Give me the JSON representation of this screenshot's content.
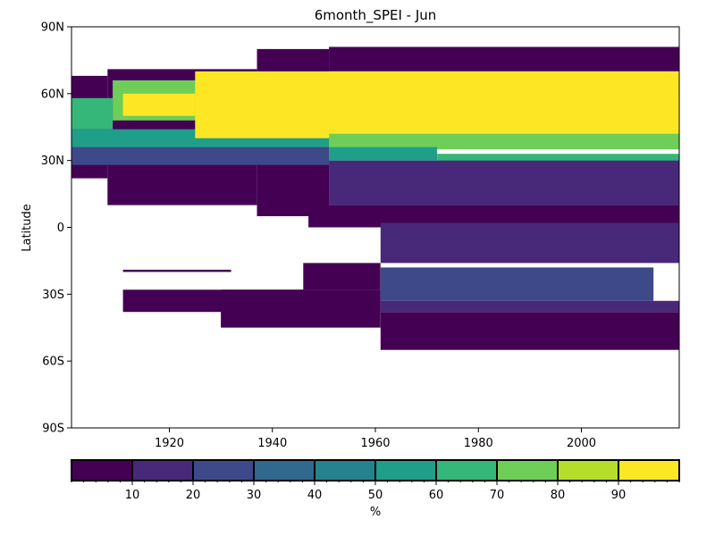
{
  "chart_data": {
    "type": "heatmap",
    "title": "6month_SPEI - Jun",
    "xlabel": "",
    "ylabel": "Latitude",
    "xlim": [
      1901,
      2019
    ],
    "ylim": [
      -90,
      90
    ],
    "xticks": [
      {
        "value": 1920,
        "label": "1920"
      },
      {
        "value": 1940,
        "label": "1940"
      },
      {
        "value": 1960,
        "label": "1960"
      },
      {
        "value": 1980,
        "label": "1980"
      },
      {
        "value": 2000,
        "label": "2000"
      }
    ],
    "yticks": [
      {
        "value": 90,
        "label": "90N"
      },
      {
        "value": 60,
        "label": "60N"
      },
      {
        "value": 30,
        "label": "30N"
      },
      {
        "value": 0,
        "label": "0"
      },
      {
        "value": -30,
        "label": "30S"
      },
      {
        "value": -60,
        "label": "60S"
      },
      {
        "value": -90,
        "label": "90S"
      }
    ],
    "colorbar": {
      "label": "%",
      "range": [
        0,
        100
      ],
      "boundaries": [
        0,
        10,
        20,
        30,
        40,
        50,
        60,
        70,
        80,
        90,
        100
      ],
      "tick_labels": [
        "10",
        "20",
        "30",
        "40",
        "50",
        "60",
        "70",
        "80",
        "90"
      ],
      "colors": [
        "#440154",
        "#482878",
        "#3e4989",
        "#31688e",
        "#26828e",
        "#1f9e89",
        "#35b779",
        "#6ece58",
        "#b5de2b",
        "#fde725"
      ]
    },
    "regions": [
      {
        "x": [
          1901,
          1908
        ],
        "lat": [
          22,
          68
        ],
        "value": 5
      },
      {
        "x": [
          1908,
          1937
        ],
        "lat": [
          10,
          71
        ],
        "value": 5
      },
      {
        "x": [
          1937,
          1951
        ],
        "lat": [
          5,
          80
        ],
        "value": 5
      },
      {
        "x": [
          1951,
          2019
        ],
        "lat": [
          70,
          81
        ],
        "value": 5
      },
      {
        "x": [
          1901,
          1951
        ],
        "lat": [
          28,
          42
        ],
        "value": 25
      },
      {
        "x": [
          1901,
          2019
        ],
        "lat": [
          36,
          44
        ],
        "value": 55
      },
      {
        "x": [
          1901,
          1909
        ],
        "lat": [
          44,
          58
        ],
        "value": 65
      },
      {
        "x": [
          1909,
          1926
        ],
        "lat": [
          48,
          66
        ],
        "value": 75
      },
      {
        "x": [
          1925,
          2019
        ],
        "lat": [
          40,
          70
        ],
        "value": 95
      },
      {
        "x": [
          1911,
          1925
        ],
        "lat": [
          50,
          60
        ],
        "value": 95
      },
      {
        "x": [
          1951,
          2019
        ],
        "lat": [
          35,
          42
        ],
        "value": 75
      },
      {
        "x": [
          1951,
          1972
        ],
        "lat": [
          30,
          36
        ],
        "value": 55
      },
      {
        "x": [
          1972,
          2019
        ],
        "lat": [
          25,
          33
        ],
        "value": 65
      },
      {
        "x": [
          1951,
          2019
        ],
        "lat": [
          10,
          30
        ],
        "value": 15
      },
      {
        "x": [
          1947,
          2019
        ],
        "lat": [
          0,
          10
        ],
        "value": 5
      },
      {
        "x": [
          1961,
          2019
        ],
        "lat": [
          -5,
          2
        ],
        "value": 15
      },
      {
        "x": [
          1961,
          2019
        ],
        "lat": [
          -16,
          -5
        ],
        "value": 15
      },
      {
        "x": [
          1911,
          1961
        ],
        "lat": [
          -38,
          -28
        ],
        "value": 5
      },
      {
        "x": [
          1930,
          1961
        ],
        "lat": [
          -45,
          -28
        ],
        "value": 5
      },
      {
        "x": [
          1946,
          1961
        ],
        "lat": [
          -28,
          -16
        ],
        "value": 5
      },
      {
        "x": [
          1961,
          2019
        ],
        "lat": [
          -55,
          -38
        ],
        "value": 5
      },
      {
        "x": [
          1961,
          2014
        ],
        "lat": [
          -33,
          -18
        ],
        "value": 25
      },
      {
        "x": [
          1961,
          2019
        ],
        "lat": [
          -38,
          -33
        ],
        "value": 15
      },
      {
        "x": [
          1911,
          1932
        ],
        "lat": [
          -20,
          -19
        ],
        "value": 5
      }
    ]
  }
}
